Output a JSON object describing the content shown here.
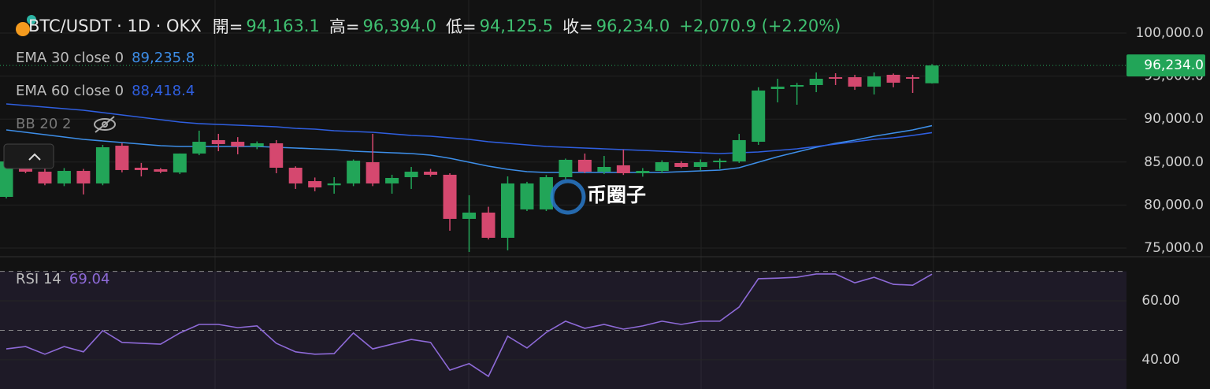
{
  "header": {
    "symbol": "BTC/USDT · 1D · OKX",
    "open_label": "開=",
    "open": "94,163.1",
    "high_label": "高=",
    "high": "96,394.0",
    "low_label": "低=",
    "low": "94,125.5",
    "close_label": "收=",
    "close": "96,234.0",
    "change": "+2,070.9 (+2.20%)"
  },
  "watermark": "币圈子",
  "chart_data": [
    {
      "type": "candlestick",
      "up_color": "#22a558",
      "down_color": "#d5486f",
      "open": [
        80950,
        84340,
        83880,
        82510,
        83970,
        82510,
        86900,
        84340,
        84160,
        83790,
        85990,
        87550,
        87360,
        86810,
        87180,
        84340,
        82780,
        82300,
        82510,
        84980,
        82510,
        83240,
        83880,
        83520,
        78390,
        79120,
        76190,
        79490,
        79490,
        83240,
        85260,
        83880,
        84620,
        83700,
        83970,
        84890,
        84430,
        84980,
        85070,
        87360,
        93500,
        93770,
        93960,
        94870,
        94870,
        93770,
        95150,
        94870,
        94163.1
      ],
      "high": [
        85530,
        84600,
        84200,
        84300,
        84200,
        87000,
        87200,
        84900,
        84300,
        86000,
        88650,
        88280,
        87900,
        87400,
        87550,
        84500,
        83200,
        83240,
        85300,
        88280,
        83520,
        84430,
        84200,
        83700,
        81140,
        79800,
        83330,
        82700,
        83500,
        85400,
        85990,
        85710,
        86450,
        84300,
        85200,
        85100,
        85300,
        85400,
        88280,
        93700,
        94690,
        94200,
        95420,
        95330,
        95150,
        95420,
        95300,
        95150,
        96394.0
      ],
      "low": [
        80770,
        83700,
        82300,
        82200,
        81230,
        82300,
        83800,
        83330,
        83700,
        83600,
        85800,
        86260,
        85900,
        86500,
        83700,
        81870,
        81600,
        81320,
        82200,
        82200,
        81320,
        81870,
        83300,
        77010,
        74540,
        76000,
        74730,
        79300,
        79300,
        83000,
        83700,
        83600,
        83500,
        83300,
        83700,
        84300,
        84000,
        84200,
        84900,
        87000,
        91940,
        91670,
        93130,
        93960,
        93400,
        92860,
        93700,
        93040,
        94125.5
      ],
      "close": [
        85070,
        83880,
        82510,
        83970,
        82510,
        86720,
        84070,
        84070,
        83880,
        85990,
        87360,
        87090,
        86810,
        87180,
        84340,
        82510,
        82050,
        82510,
        85160,
        82510,
        83150,
        83880,
        83520,
        78390,
        79120,
        76190,
        82510,
        82510,
        83240,
        85260,
        83880,
        84430,
        83700,
        83970,
        84980,
        84430,
        84980,
        85160,
        87550,
        93320,
        93770,
        93960,
        94690,
        94690,
        93770,
        94960,
        94230,
        94690,
        96234.0
      ],
      "lines": [
        {
          "name": "EMA 30 close 0",
          "color": "#3d8ee8",
          "last_value_label": "89,235.8",
          "values": [
            88736,
            88461,
            88186,
            87912,
            87637,
            87454,
            87270,
            87087,
            86904,
            86813,
            86813,
            86813,
            86813,
            86813,
            86721,
            86629,
            86538,
            86446,
            86263,
            86171,
            86080,
            85988,
            85805,
            85439,
            84981,
            84523,
            84157,
            83882,
            83790,
            83790,
            83790,
            83790,
            83790,
            83790,
            83790,
            83882,
            83973,
            84065,
            84340,
            84981,
            85622,
            86171,
            86721,
            87179,
            87545,
            88003,
            88369,
            88736,
            89235.8
          ]
        },
        {
          "name": "EMA 60 close 0",
          "color": "#2f5fe0",
          "last_value_label": "88,418.4",
          "values": [
            91758,
            91575,
            91392,
            91208,
            91025,
            90750,
            90476,
            90201,
            89926,
            89652,
            89469,
            89377,
            89285,
            89194,
            89102,
            88919,
            88827,
            88644,
            88553,
            88461,
            88278,
            88095,
            88003,
            87820,
            87637,
            87362,
            87179,
            86996,
            86813,
            86721,
            86629,
            86538,
            86446,
            86354,
            86263,
            86171,
            86080,
            85988,
            86080,
            86171,
            86354,
            86538,
            86813,
            87087,
            87362,
            87637,
            87820,
            88095,
            88418.4
          ]
        }
      ],
      "hidden_indicator": "BB 20 2",
      "last_price_label": "96,234.0",
      "ylim": [
        74080,
        103850
      ],
      "yticks": [
        {
          "value": 75000,
          "label": "75,000.0"
        },
        {
          "value": 80000,
          "label": "80,000.0"
        },
        {
          "value": 85000,
          "label": "85,000.0"
        },
        {
          "value": 90000,
          "label": "90,000.0"
        },
        {
          "value": 95000,
          "label": "95,000.0"
        },
        {
          "value": 100000,
          "label": "100,000.0"
        }
      ],
      "grid": true
    },
    {
      "type": "line",
      "series": [
        {
          "name": "RSI 14",
          "color": "#8e6ad8",
          "values": [
            43.7,
            44.5,
            41.9,
            44.5,
            42.7,
            49.9,
            45.9,
            45.6,
            45.3,
            49.1,
            52.0,
            52.0,
            50.9,
            51.5,
            45.6,
            42.7,
            41.9,
            42.1,
            49.1,
            43.7,
            45.3,
            46.9,
            45.9,
            36.5,
            38.7,
            34.4,
            48.0,
            44.0,
            49.3,
            53.1,
            50.7,
            52.0,
            50.4,
            51.5,
            53.1,
            52.0,
            53.1,
            53.1,
            57.9,
            67.5,
            67.7,
            68.0,
            69.1,
            69.1,
            66.1,
            68.0,
            65.6,
            65.3,
            69.04
          ]
        }
      ],
      "bands": [
        50,
        70
      ],
      "ylim": [
        30.1,
        73.9
      ],
      "yticks": [
        {
          "value": 40,
          "label": "40.00"
        },
        {
          "value": 60,
          "label": "60.00"
        }
      ]
    }
  ]
}
